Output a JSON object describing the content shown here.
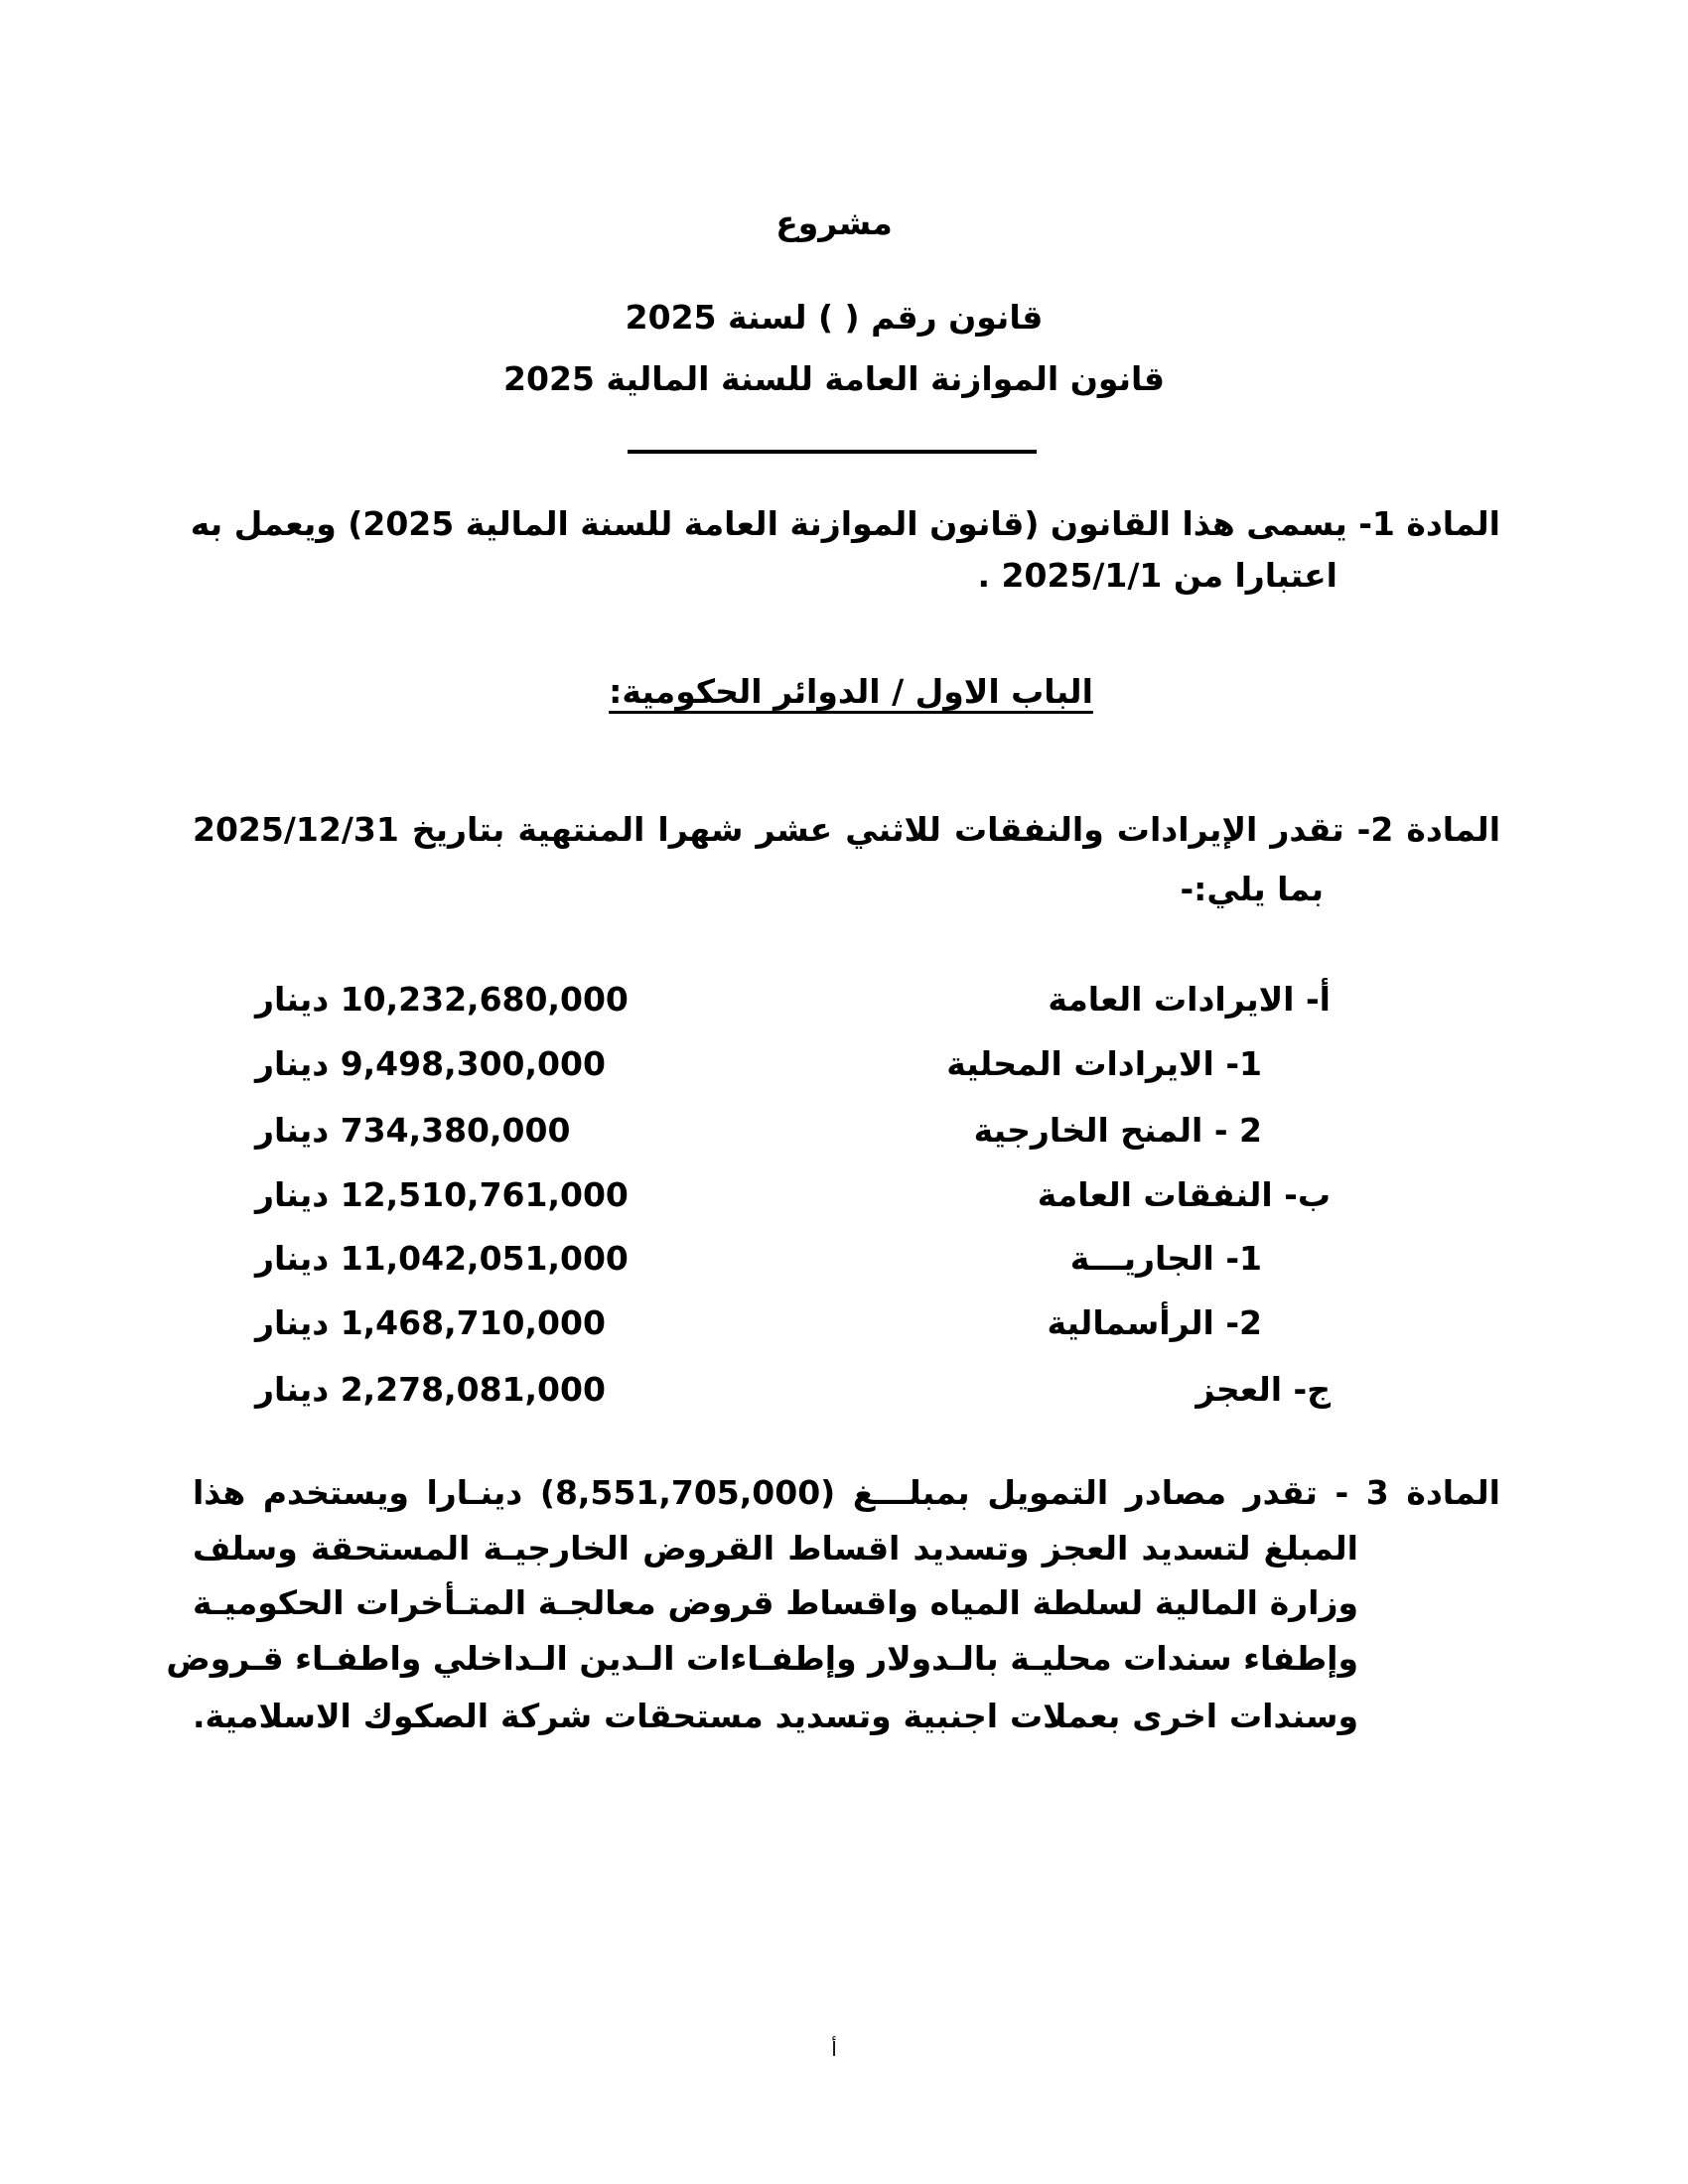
{
  "header": {
    "draft": "مشروع",
    "law_number": "قانون رقم (   ) لسنة 2025",
    "law_title": "قانون الموازنة العامة للسنة المالية 2025"
  },
  "article1": {
    "line1": "المادة 1-  يسمى هذا القانون (قانون الموازنة العامة للسنة المالية 2025) ويعمل به",
    "line2": "اعتبارا من 2025/1/1 ."
  },
  "chapter_heading": "الباب الاول / الدوائر الحكومية:",
  "article2": {
    "line1": "المادة 2- تقدر الإيرادات والنفقات للاثني عشر شهرا المنتهية بتاريخ 2025/12/31",
    "line2": "بما يلي:-"
  },
  "budget_items": [
    {
      "label": "أ- الايرادات العامة",
      "amount": "10,232,680,000 دينار"
    },
    {
      "label": "1- الايرادات المحلية",
      "amount": "9,498,300,000 دينار"
    },
    {
      "label": "2 - المنح الخارجية",
      "amount": "734,380,000 دينار"
    },
    {
      "label": "ب- النفقات العامة",
      "amount": "12,510,761,000 دينار"
    },
    {
      "label": "1- الجاريـــة",
      "amount": "11,042,051,000 دينار"
    },
    {
      "label": "2- الرأسمالية",
      "amount": "1,468,710,000 دينار"
    },
    {
      "label": "ج- العجز",
      "amount": "2,278,081,000 دينار"
    }
  ],
  "article3": {
    "lines": [
      "المادة 3 - تقدر مصادر التمويل بمبلـــغ (8,551,705,000) دينـارا ويستخدم هذا",
      "المبلغ لتسديد العجز وتسديد اقساط القروض الخارجيـة المستحقة وسلف",
      "وزارة المالية لسلطة المياه واقساط قروض معالجـة المتـأخرات الحكوميـة",
      "وإطفاء سندات محليـة بالـدولار وإطفـاءات الـدين الـداخلي واطفـاء قـروض",
      "وسندات اخرى بعملات اجنبية وتسديد مستحقات شركة الصكوك الاسلامية."
    ]
  },
  "footer": {
    "page_marker": "أ"
  }
}
